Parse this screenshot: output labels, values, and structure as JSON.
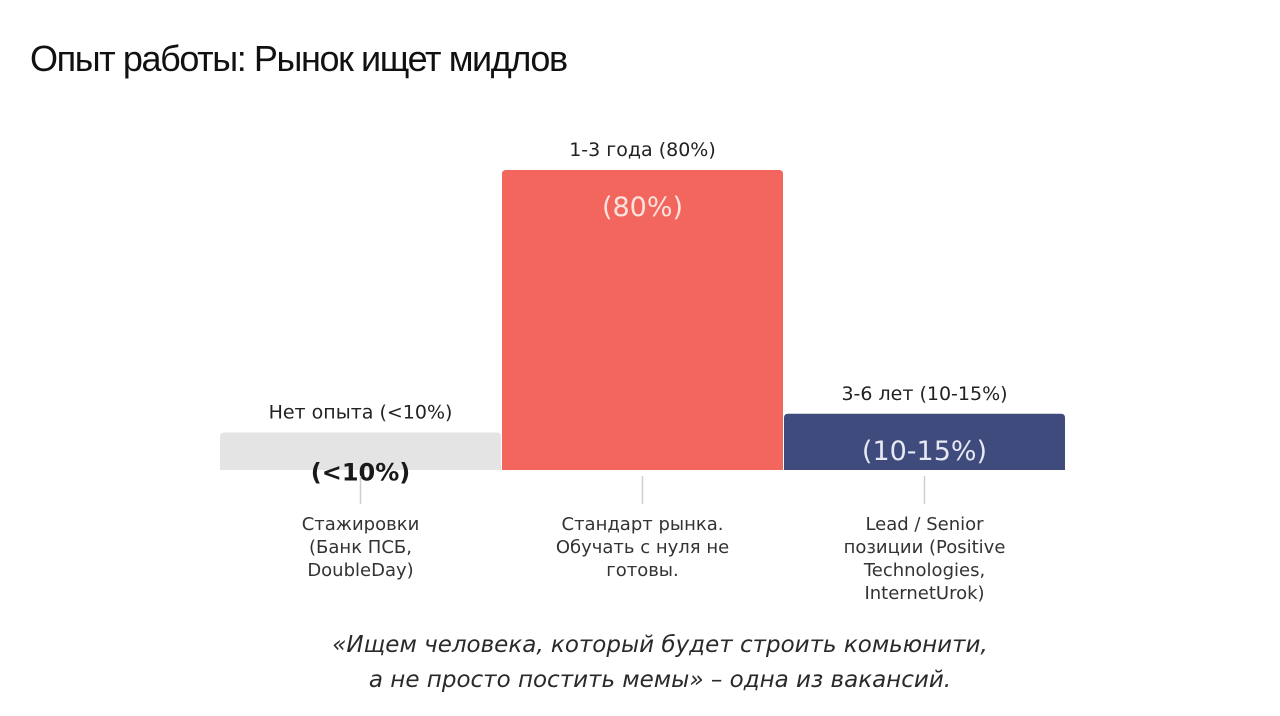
{
  "title": "Опыт работы: Рынок ищет мидлов",
  "chart_data": {
    "type": "bar",
    "categories": [
      "Нет опыта (<10%)",
      "1-3 года (80%)",
      "3-6 лет (10-15%)"
    ],
    "values": [
      10,
      80,
      15
    ],
    "bar_labels": [
      "(<10%)",
      "(80%)",
      "(10-15%)"
    ],
    "descriptions": [
      [
        "Стажировки",
        "(Банк ПСБ,",
        "DoubleDay)"
      ],
      [
        "Стандарт рынка.",
        "Обучать с нуля не",
        "готовы."
      ],
      [
        "Lead / Senior",
        "позиции (Positive",
        "Technologies,",
        "InternetUrok)"
      ]
    ],
    "colors": [
      "#e4e4e4",
      "#f2665d",
      "#3f4a7d"
    ],
    "bar_label_colors": [
      "#1a1a1a",
      "#fde3e0",
      "#e6e8f2"
    ],
    "ylim": [
      0,
      80
    ],
    "grid": false
  },
  "quote": {
    "line1": "«Ищем человека, который будет строить комьюнити,",
    "line2": "а не просто постить мемы» – одна из вакансий."
  }
}
